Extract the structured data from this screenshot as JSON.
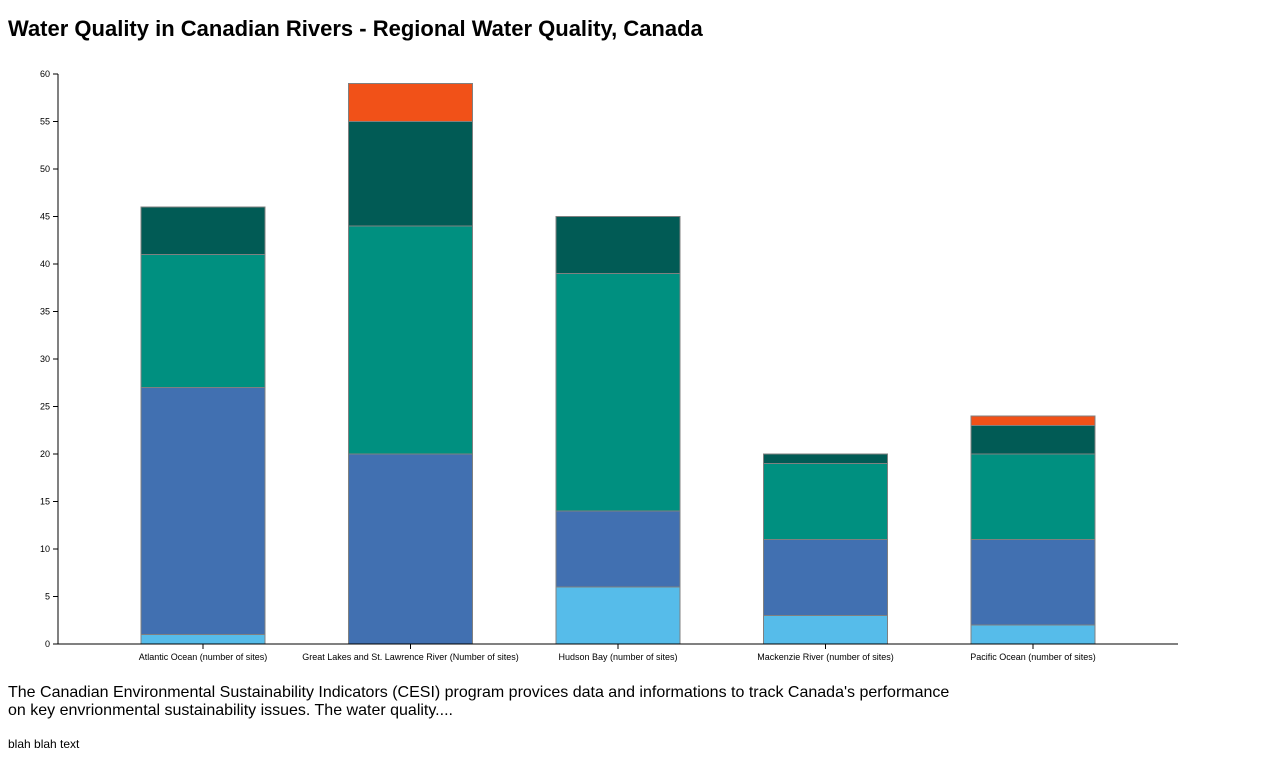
{
  "header": {
    "title": "Water Quality in Canadian Rivers - Regional Water Quality, Canada"
  },
  "chart_data": {
    "type": "bar",
    "stacked": true,
    "title": "",
    "xlabel": "",
    "ylabel": "",
    "ylim": [
      0,
      60
    ],
    "y_ticks": [
      0,
      5,
      10,
      15,
      20,
      25,
      30,
      35,
      40,
      45,
      50,
      55,
      60
    ],
    "grid": false,
    "legend": "none",
    "categories": [
      "Atlantic Ocean (number of sites)",
      "Great Lakes and St. Lawrence River (Number of sites)",
      "Hudson Bay (number of sites)",
      "Mackenzie River (number of sites)",
      "Pacific Ocean (number of sites)"
    ],
    "series": [
      {
        "color": "#56bcea",
        "values": [
          1,
          0,
          6,
          3,
          2
        ]
      },
      {
        "color": "#4170b1",
        "values": [
          26,
          20,
          8,
          8,
          9
        ]
      },
      {
        "color": "#009080",
        "values": [
          14,
          24,
          25,
          8,
          9
        ]
      },
      {
        "color": "#015b55",
        "values": [
          5,
          11,
          6,
          1,
          3
        ]
      },
      {
        "color": "#f15118",
        "values": [
          0,
          4,
          0,
          0,
          1
        ]
      }
    ]
  },
  "description": {
    "text": "The Canadian Environmental Sustainability Indicators (CESI) program provices data and informations to track Canada's performance on key envrionmental sustainability issues. The water quality....",
    "footnote": "blah blah text"
  }
}
